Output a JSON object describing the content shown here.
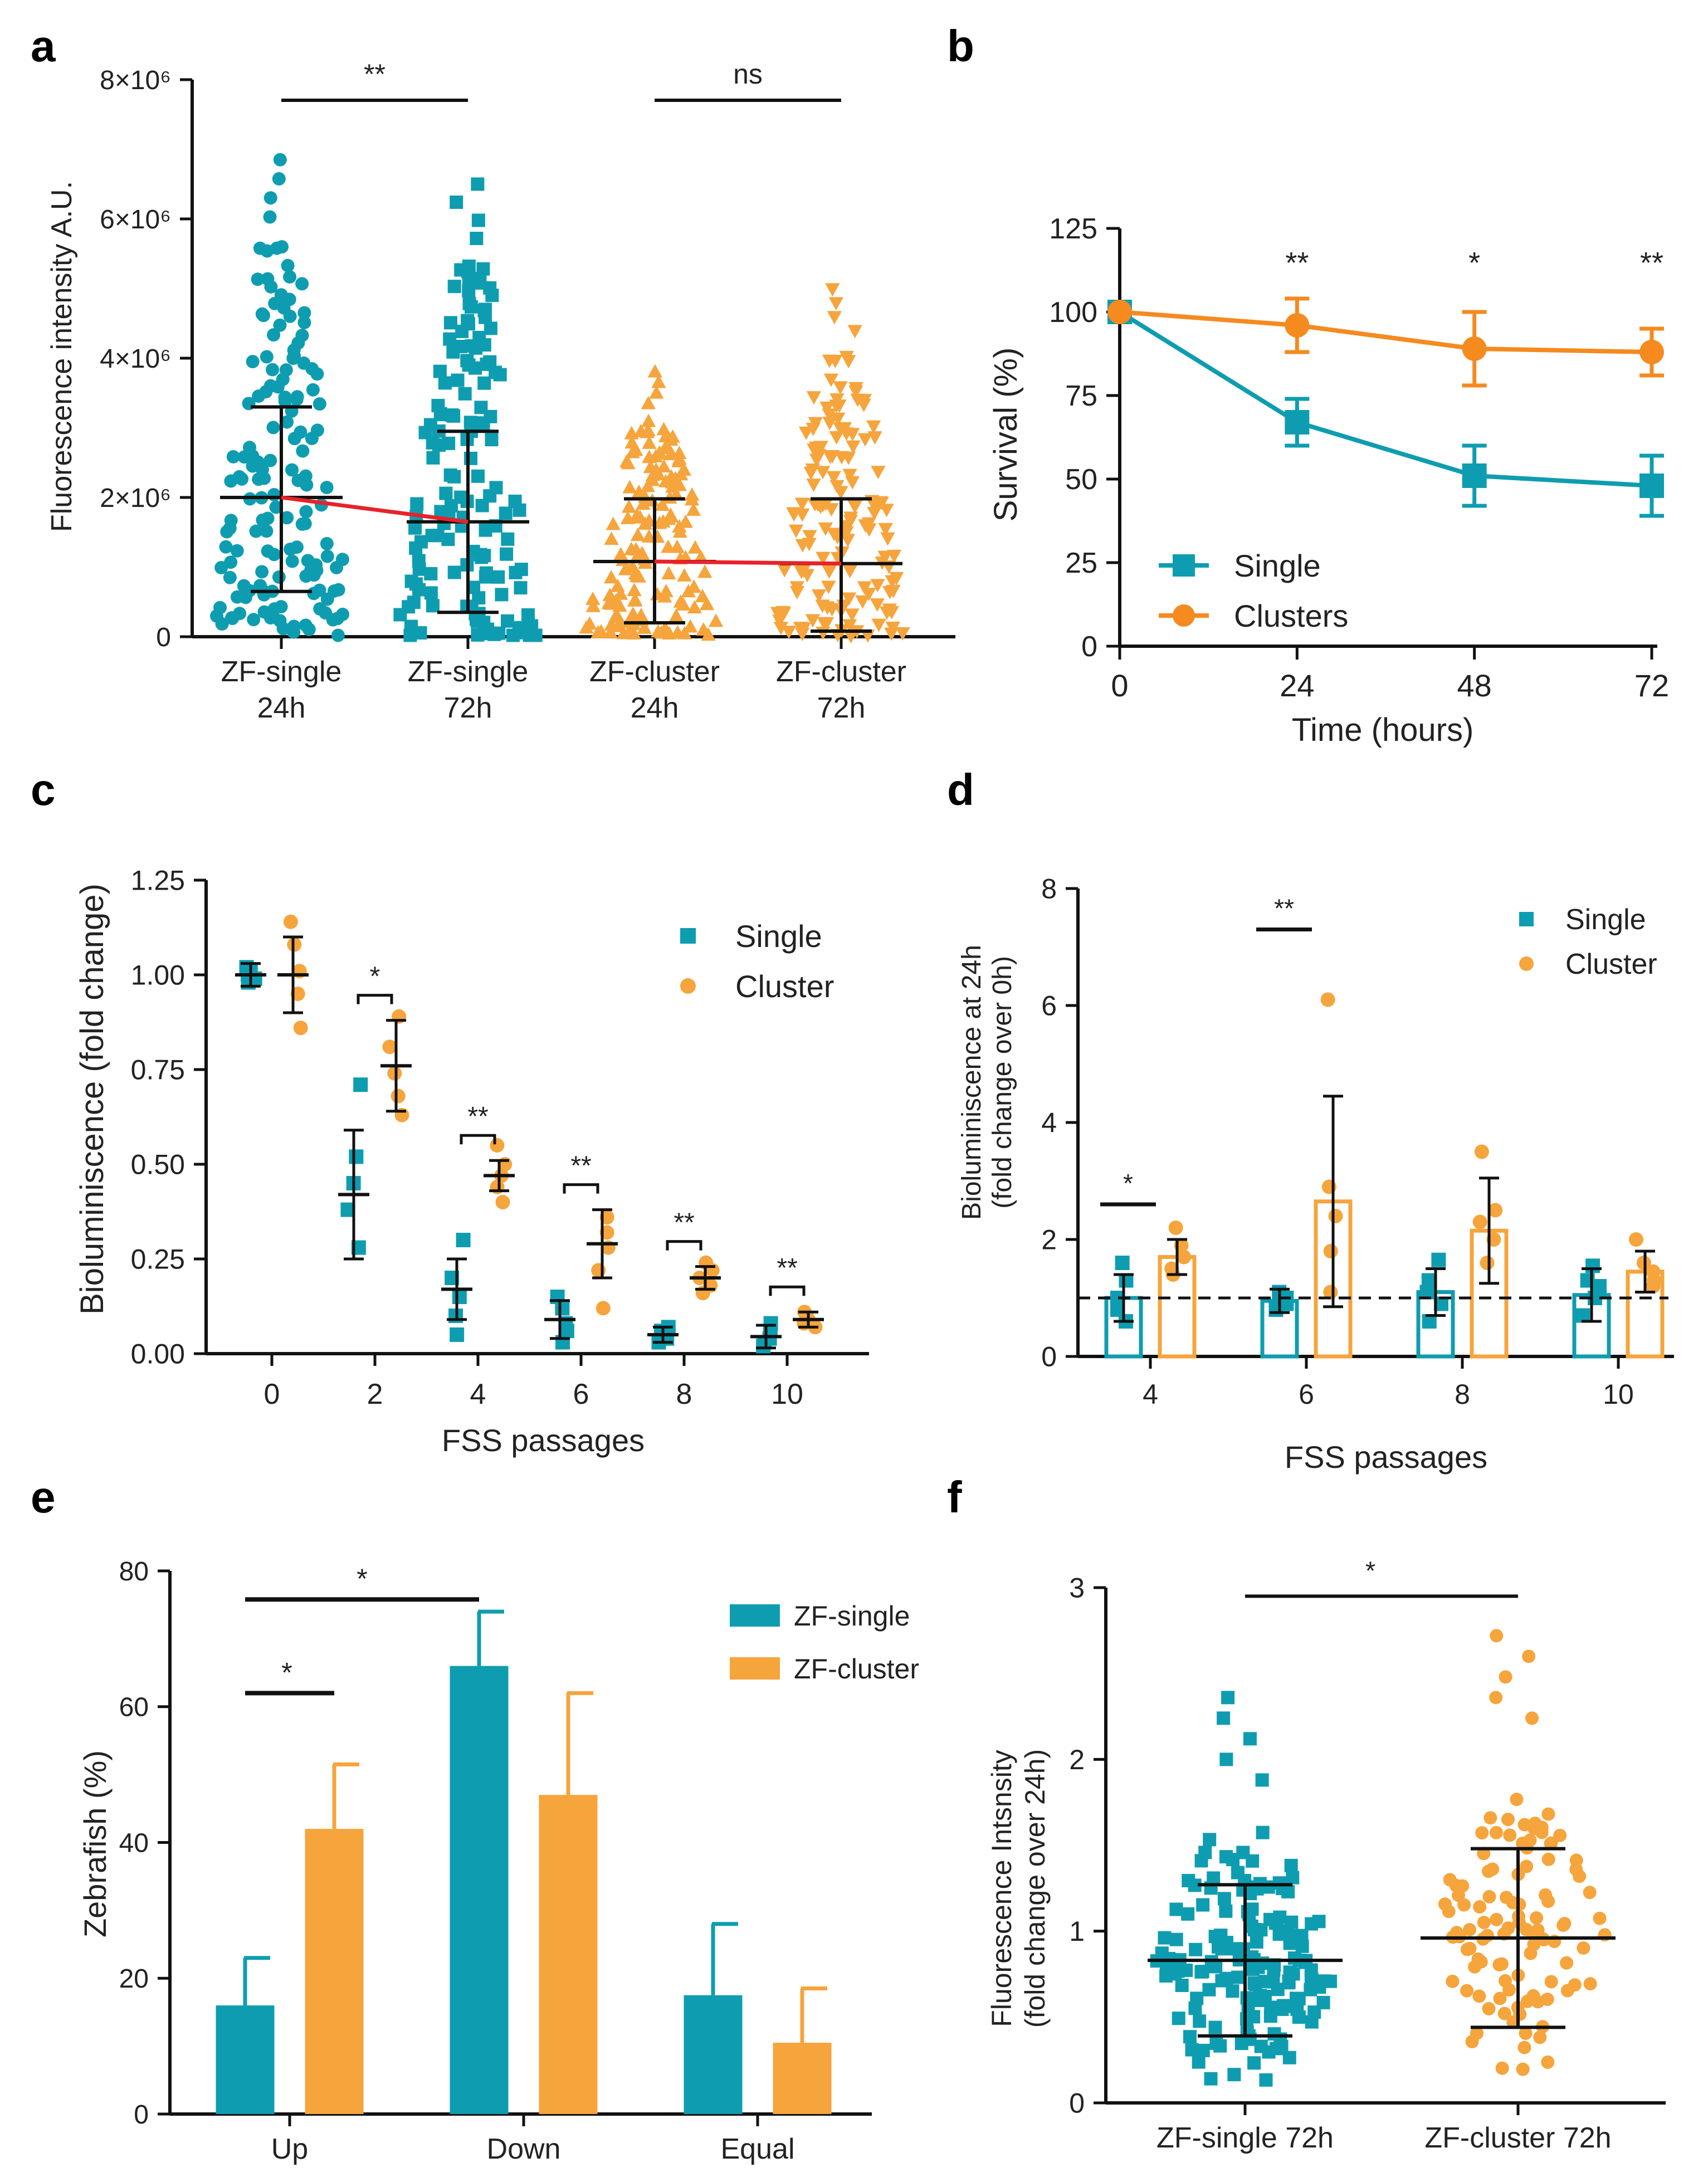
{
  "figure": {
    "panel_labels": [
      "a",
      "b",
      "c",
      "d",
      "e",
      "f"
    ],
    "colors": {
      "single": "#0E9DB0",
      "cluster": "#F6A43C",
      "cluster_b": "#F58A1F",
      "mean_line": "#E8222A",
      "ink": "#111111"
    }
  },
  "chart_data": [
    {
      "panel": "a",
      "type": "scatter",
      "ylabel": "Fluorescence intensity A.U.",
      "yticks": [
        "0",
        "2×10⁶",
        "4×10⁶",
        "6×10⁶",
        "8×10⁶"
      ],
      "ylim": [
        0,
        8000000
      ],
      "categories": [
        "ZF-single\n24h",
        "ZF-single\n72h",
        "ZF-cluster\n24h",
        "ZF-cluster\n72h"
      ],
      "category_lines": [
        [
          "ZF-single",
          "24h"
        ],
        [
          "ZF-single",
          "72h"
        ],
        [
          "ZF-cluster",
          "24h"
        ],
        [
          "ZF-cluster",
          "72h"
        ]
      ],
      "groups": [
        {
          "name": "ZF-single 24h",
          "marker": "circle",
          "color": "single",
          "mean": 2000000,
          "sd_low": 650000,
          "sd_high": 3300000,
          "n": 150,
          "max": 6850000
        },
        {
          "name": "ZF-single 72h",
          "marker": "square",
          "color": "single",
          "mean": 1650000,
          "sd_low": 350000,
          "sd_high": 2950000,
          "n": 150,
          "max": 6500000
        },
        {
          "name": "ZF-cluster 24h",
          "marker": "triangle",
          "color": "cluster",
          "mean": 1080000,
          "sd_low": 200000,
          "sd_high": 1980000,
          "n": 150,
          "max": 3800000
        },
        {
          "name": "ZF-cluster 72h",
          "marker": "triangle-down",
          "color": "cluster",
          "mean": 1050000,
          "sd_low": 80000,
          "sd_high": 1980000,
          "n": 150,
          "max": 5000000
        }
      ],
      "significance": [
        {
          "from": 0,
          "to": 1,
          "label": "**"
        },
        {
          "from": 2,
          "to": 3,
          "label": "ns"
        }
      ]
    },
    {
      "panel": "b",
      "type": "line",
      "xlabel": "Time (hours)",
      "ylabel": "Survival (%)",
      "x": [
        0,
        24,
        48,
        72
      ],
      "xticks": [
        "0",
        "24",
        "48",
        "72"
      ],
      "yticks": [
        "0",
        "25",
        "50",
        "75",
        "100",
        "125"
      ],
      "ylim": [
        0,
        125
      ],
      "series": [
        {
          "name": "Single",
          "color": "single",
          "marker": "square",
          "values": [
            100,
            67,
            51,
            48
          ],
          "err": [
            0,
            7,
            9,
            9
          ]
        },
        {
          "name": "Clusters",
          "color": "cluster_b",
          "marker": "circle",
          "values": [
            100,
            96,
            89,
            88
          ],
          "err": [
            0,
            8,
            11,
            7
          ]
        }
      ],
      "significance": [
        {
          "x": 24,
          "label": "**"
        },
        {
          "x": 48,
          "label": "*"
        },
        {
          "x": 72,
          "label": "**"
        }
      ],
      "legend": [
        "Single",
        "Clusters"
      ]
    },
    {
      "panel": "c",
      "type": "scatter",
      "xlabel": "FSS passages",
      "ylabel": "Bioluminiscence (fold change)",
      "categories": [
        "0",
        "2",
        "4",
        "6",
        "8",
        "10"
      ],
      "yticks": [
        "0.00",
        "0.25",
        "0.50",
        "0.75",
        "1.00",
        "1.25"
      ],
      "ylim": [
        0,
        1.25
      ],
      "series": [
        {
          "name": "Single",
          "color": "single",
          "marker": "square",
          "mean": [
            1.0,
            0.42,
            0.17,
            0.09,
            0.05,
            0.045
          ],
          "sd": [
            0.03,
            0.17,
            0.08,
            0.05,
            0.02,
            0.03
          ],
          "points": [
            [
              0.98,
              1.01,
              1.02,
              0.99,
              1.0
            ],
            [
              0.71,
              0.52,
              0.45,
              0.38,
              0.28
            ],
            [
              0.3,
              0.2,
              0.15,
              0.1,
              0.05
            ],
            [
              0.15,
              0.12,
              0.08,
              0.06,
              0.03
            ],
            [
              0.07,
              0.06,
              0.05,
              0.04,
              0.03
            ],
            [
              0.08,
              0.06,
              0.04,
              0.03,
              0.02
            ]
          ]
        },
        {
          "name": "Cluster",
          "color": "cluster",
          "marker": "circle",
          "mean": [
            1.0,
            0.76,
            0.47,
            0.29,
            0.2,
            0.09
          ],
          "sd": [
            0.1,
            0.12,
            0.04,
            0.09,
            0.03,
            0.02
          ],
          "points": [
            [
              1.14,
              1.08,
              1.01,
              0.95,
              0.86
            ],
            [
              0.89,
              0.81,
              0.74,
              0.68,
              0.63
            ],
            [
              0.55,
              0.5,
              0.47,
              0.44,
              0.4
            ],
            [
              0.36,
              0.32,
              0.28,
              0.22,
              0.12
            ],
            [
              0.24,
              0.22,
              0.2,
              0.18,
              0.16
            ],
            [
              0.11,
              0.1,
              0.09,
              0.08,
              0.07
            ]
          ]
        }
      ],
      "significance": [
        "",
        "*",
        "**",
        "**",
        "**",
        "**"
      ],
      "legend": [
        "Single",
        "Cluster"
      ]
    },
    {
      "panel": "d",
      "type": "bar",
      "xlabel": "FSS passages",
      "ylabel": "Bioluminiscence at 24h",
      "ylabel2": "(fold change over 0h)",
      "categories": [
        "4",
        "6",
        "8",
        "10"
      ],
      "yticks": [
        "0",
        "2",
        "4",
        "6",
        "8"
      ],
      "ylim": [
        0,
        8
      ],
      "reference_line": 1,
      "series": [
        {
          "name": "Single",
          "color": "single",
          "values": [
            1.0,
            0.95,
            1.1,
            1.05
          ],
          "sd": [
            0.4,
            0.2,
            0.4,
            0.45
          ],
          "points": [
            [
              1.6,
              1.3,
              1.0,
              0.8,
              0.6
            ],
            [
              1.1,
              1.0,
              0.95,
              0.9,
              0.8
            ],
            [
              1.65,
              1.3,
              1.1,
              0.9,
              0.6
            ],
            [
              1.55,
              1.3,
              1.2,
              1.0,
              0.7
            ]
          ]
        },
        {
          "name": "Cluster",
          "color": "cluster",
          "values": [
            1.7,
            2.65,
            2.15,
            1.45
          ],
          "sd": [
            0.3,
            1.8,
            0.9,
            0.35
          ],
          "points": [
            [
              2.2,
              1.9,
              1.7,
              1.5,
              1.4
            ],
            [
              6.1,
              2.9,
              2.4,
              1.8,
              1.1
            ],
            [
              3.5,
              2.5,
              2.3,
              2.0,
              1.6
            ],
            [
              2.0,
              1.6,
              1.45,
              1.3,
              1.2
            ]
          ]
        }
      ],
      "significance": [
        "*",
        "**",
        "",
        ""
      ],
      "legend": [
        "Single",
        "Cluster"
      ]
    },
    {
      "panel": "e",
      "type": "bar",
      "ylabel": "Zebrafish (%)",
      "categories": [
        "Up",
        "Down",
        "Equal"
      ],
      "yticks": [
        "0",
        "20",
        "40",
        "60",
        "80"
      ],
      "ylim": [
        0,
        80
      ],
      "series": [
        {
          "name": "ZF-single",
          "color": "single",
          "values": [
            16,
            66,
            17.5
          ],
          "err": [
            7,
            8,
            10.5
          ]
        },
        {
          "name": "ZF-cluster",
          "color": "cluster",
          "values": [
            42,
            47,
            10.5
          ],
          "err": [
            9.5,
            15,
            8
          ]
        }
      ],
      "significance": [
        {
          "from": "Up ZF-single",
          "to": "Down ZF-single",
          "label": "*"
        },
        {
          "from": "Up ZF-single",
          "to": "Up ZF-cluster",
          "label": "*"
        }
      ],
      "legend": [
        "ZF-single",
        "ZF-cluster"
      ]
    },
    {
      "panel": "f",
      "type": "scatter",
      "ylabel": "Fluorescence Intsnsity",
      "ylabel2": "(fold change over 24h)",
      "categories": [
        "ZF-single 72h",
        "ZF-cluster 72h"
      ],
      "yticks": [
        "0",
        "1",
        "2",
        "3"
      ],
      "ylim": [
        0,
        3
      ],
      "groups": [
        {
          "name": "ZF-single 72h",
          "marker": "square",
          "color": "single",
          "mean": 0.83,
          "sd_low": 0.39,
          "sd_high": 1.27,
          "n": 160,
          "max": 2.36
        },
        {
          "name": "ZF-cluster 72h",
          "marker": "circle",
          "color": "cluster",
          "mean": 0.96,
          "sd_low": 0.44,
          "sd_high": 1.48,
          "n": 110,
          "max": 2.72
        }
      ],
      "significance": [
        {
          "from": 0,
          "to": 1,
          "label": "*"
        }
      ]
    }
  ]
}
